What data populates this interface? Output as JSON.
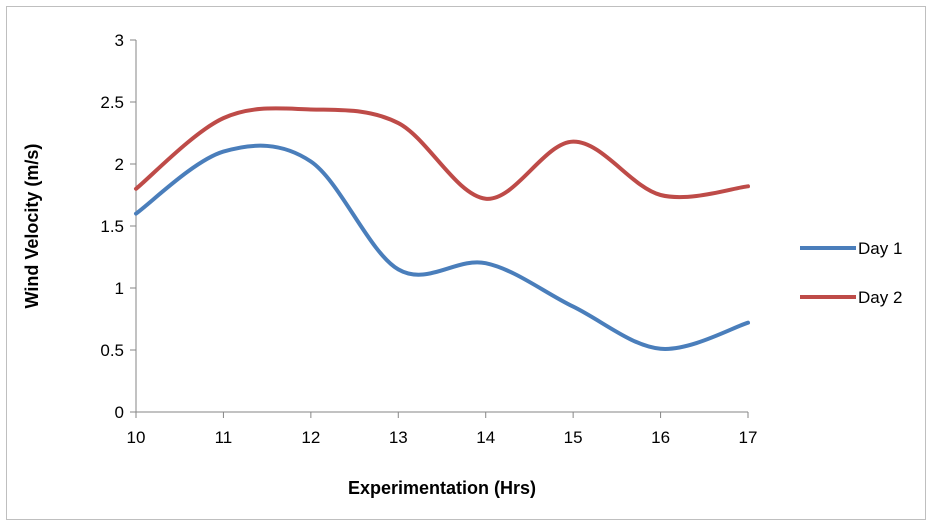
{
  "chart_data": {
    "type": "line",
    "title": "",
    "xlabel": "Experimentation (Hrs)",
    "ylabel": "Wind Velocity (m/s)",
    "x": [
      10,
      11,
      12,
      13,
      14,
      15,
      16,
      17
    ],
    "xlim": [
      10,
      17
    ],
    "ylim": [
      0,
      3
    ],
    "x_ticks": [
      "10",
      "11",
      "12",
      "13",
      "14",
      "15",
      "16",
      "17"
    ],
    "y_ticks": [
      "0",
      "0.5",
      "1",
      "1.5",
      "2",
      "2.5",
      "3"
    ],
    "grid": false,
    "smooth": true,
    "legend_position": "right",
    "series": [
      {
        "name": "Day 1",
        "color": "#4a7ebb",
        "values": [
          1.6,
          2.1,
          2.02,
          1.15,
          1.2,
          0.85,
          0.51,
          0.72
        ]
      },
      {
        "name": "Day 2",
        "color": "#be4b48",
        "values": [
          1.8,
          2.37,
          2.44,
          2.33,
          1.72,
          2.18,
          1.75,
          1.82
        ]
      }
    ]
  }
}
